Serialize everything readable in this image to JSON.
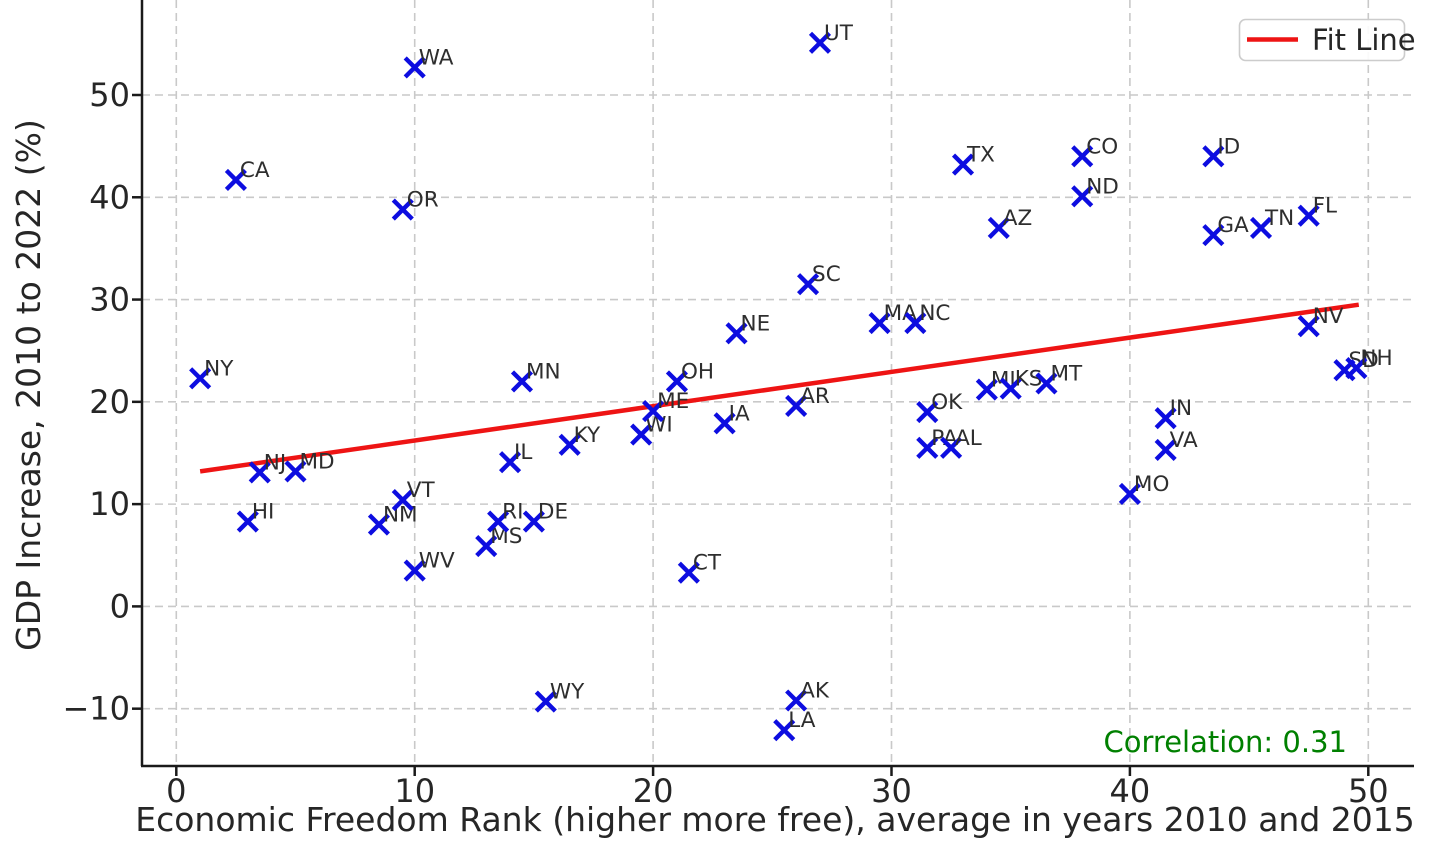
{
  "figure": {
    "background": "#ffffff",
    "text_color": "#262626",
    "grid_color": "#c9c9c9",
    "spine_color": "#1a1a1a"
  },
  "chart_data": {
    "type": "scatter",
    "title": "",
    "xlabel": "Economic Freedom Rank (higher more free), average in years 2010 and 2015",
    "ylabel": "GDP Increase, 2010 to 2022 (%)",
    "xlim": [
      -1.4,
      51.9
    ],
    "ylim": [
      -15.6,
      59.3
    ],
    "grid": true,
    "x_ticks": [
      0,
      10,
      20,
      30,
      40,
      50
    ],
    "x_tick_labels": [
      "0",
      "10",
      "20",
      "30",
      "40",
      "50"
    ],
    "y_ticks": [
      50,
      40,
      30,
      20,
      10,
      0,
      -10
    ],
    "y_tick_labels": [
      "50",
      "40",
      "30",
      "20",
      "10",
      "0",
      "−10"
    ],
    "marker": {
      "shape": "x",
      "color": "#0d0de0"
    },
    "label_color": "#2e2e2e",
    "legend_label": "Fit Line",
    "legend_position": "upper right",
    "annotation_text": "Correlation: 0.31",
    "annotation_color": "#008000",
    "correlation": 0.31,
    "fit_line": {
      "x1": 1.0,
      "y1": 13.2,
      "x2": 49.6,
      "y2": 29.5,
      "color": "#ee1414"
    },
    "points": [
      {
        "label": "NY",
        "x": 1.0,
        "y": 22.3
      },
      {
        "label": "CA",
        "x": 2.5,
        "y": 41.7
      },
      {
        "label": "HI",
        "x": 3.0,
        "y": 8.3
      },
      {
        "label": "NJ",
        "x": 3.5,
        "y": 13.1
      },
      {
        "label": "MD",
        "x": 5.0,
        "y": 13.2
      },
      {
        "label": "NM",
        "x": 8.5,
        "y": 8.0
      },
      {
        "label": "VT",
        "x": 9.5,
        "y": 10.4
      },
      {
        "label": "OR",
        "x": 9.5,
        "y": 38.8
      },
      {
        "label": "WA",
        "x": 10.0,
        "y": 52.7
      },
      {
        "label": "WV",
        "x": 10.0,
        "y": 3.5
      },
      {
        "label": "MS",
        "x": 13.0,
        "y": 5.9
      },
      {
        "label": "RI",
        "x": 13.5,
        "y": 8.3
      },
      {
        "label": "IL",
        "x": 14.0,
        "y": 14.1
      },
      {
        "label": "MN",
        "x": 14.5,
        "y": 22.0
      },
      {
        "label": "DE",
        "x": 15.0,
        "y": 8.3
      },
      {
        "label": "WY",
        "x": 15.5,
        "y": -9.3
      },
      {
        "label": "KY",
        "x": 16.5,
        "y": 15.8
      },
      {
        "label": "WI",
        "x": 19.5,
        "y": 16.8
      },
      {
        "label": "ME",
        "x": 20.0,
        "y": 19.1
      },
      {
        "label": "OH",
        "x": 21.0,
        "y": 22.0
      },
      {
        "label": "CT",
        "x": 21.5,
        "y": 3.3
      },
      {
        "label": "IA",
        "x": 23.0,
        "y": 17.9
      },
      {
        "label": "NE",
        "x": 23.5,
        "y": 26.7
      },
      {
        "label": "LA",
        "x": 25.5,
        "y": -12.1
      },
      {
        "label": "AR",
        "x": 26.0,
        "y": 19.6
      },
      {
        "label": "AK",
        "x": 26.0,
        "y": -9.2
      },
      {
        "label": "SC",
        "x": 26.5,
        "y": 31.5
      },
      {
        "label": "UT",
        "x": 27.0,
        "y": 55.1
      },
      {
        "label": "MA",
        "x": 29.5,
        "y": 27.7
      },
      {
        "label": "NC",
        "x": 31.0,
        "y": 27.7
      },
      {
        "label": "OK",
        "x": 31.5,
        "y": 19.0
      },
      {
        "label": "PA",
        "x": 31.5,
        "y": 15.5
      },
      {
        "label": "AL",
        "x": 32.5,
        "y": 15.5
      },
      {
        "label": "TX",
        "x": 33.0,
        "y": 43.2
      },
      {
        "label": "MI",
        "x": 34.0,
        "y": 21.2
      },
      {
        "label": "AZ",
        "x": 34.5,
        "y": 37.0
      },
      {
        "label": "KS",
        "x": 35.0,
        "y": 21.3
      },
      {
        "label": "MT",
        "x": 36.5,
        "y": 21.8
      },
      {
        "label": "CO",
        "x": 38.0,
        "y": 44.0
      },
      {
        "label": "ND",
        "x": 38.0,
        "y": 40.1
      },
      {
        "label": "MO",
        "x": 40.0,
        "y": 11.0
      },
      {
        "label": "IN",
        "x": 41.5,
        "y": 18.4
      },
      {
        "label": "VA",
        "x": 41.5,
        "y": 15.3
      },
      {
        "label": "ID",
        "x": 43.5,
        "y": 44.0
      },
      {
        "label": "GA",
        "x": 43.5,
        "y": 36.3
      },
      {
        "label": "TN",
        "x": 45.5,
        "y": 37.0
      },
      {
        "label": "FL",
        "x": 47.5,
        "y": 38.2
      },
      {
        "label": "NV",
        "x": 47.5,
        "y": 27.4
      },
      {
        "label": "SD",
        "x": 49.0,
        "y": 23.1
      },
      {
        "label": "NH",
        "x": 49.5,
        "y": 23.3
      }
    ]
  }
}
